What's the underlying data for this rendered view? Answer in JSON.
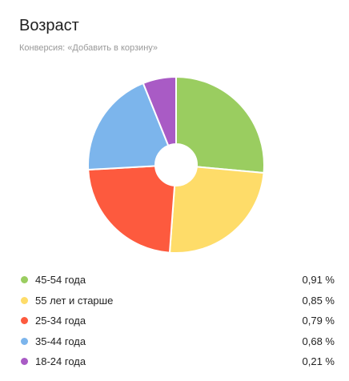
{
  "header": {
    "title": "Возраст",
    "subtitle": "Конверсия: «Добавить в корзину»"
  },
  "chart_data": {
    "type": "pie",
    "donut": true,
    "title": "Возраст",
    "subtitle": "Конверсия: «Добавить в корзину»",
    "categories": [
      "45-54 года",
      "55 лет и старше",
      "25-34 года",
      "35-44 года",
      "18-24 года"
    ],
    "values": [
      0.91,
      0.85,
      0.79,
      0.68,
      0.21
    ],
    "value_labels": [
      "0,91 %",
      "0,85 %",
      "0,79 %",
      "0,68 %",
      "0,21 %"
    ],
    "colors": [
      "#9acd60",
      "#fedc69",
      "#fd5a3e",
      "#7cb5ec",
      "#a95bc5"
    ],
    "legend_position": "bottom"
  }
}
